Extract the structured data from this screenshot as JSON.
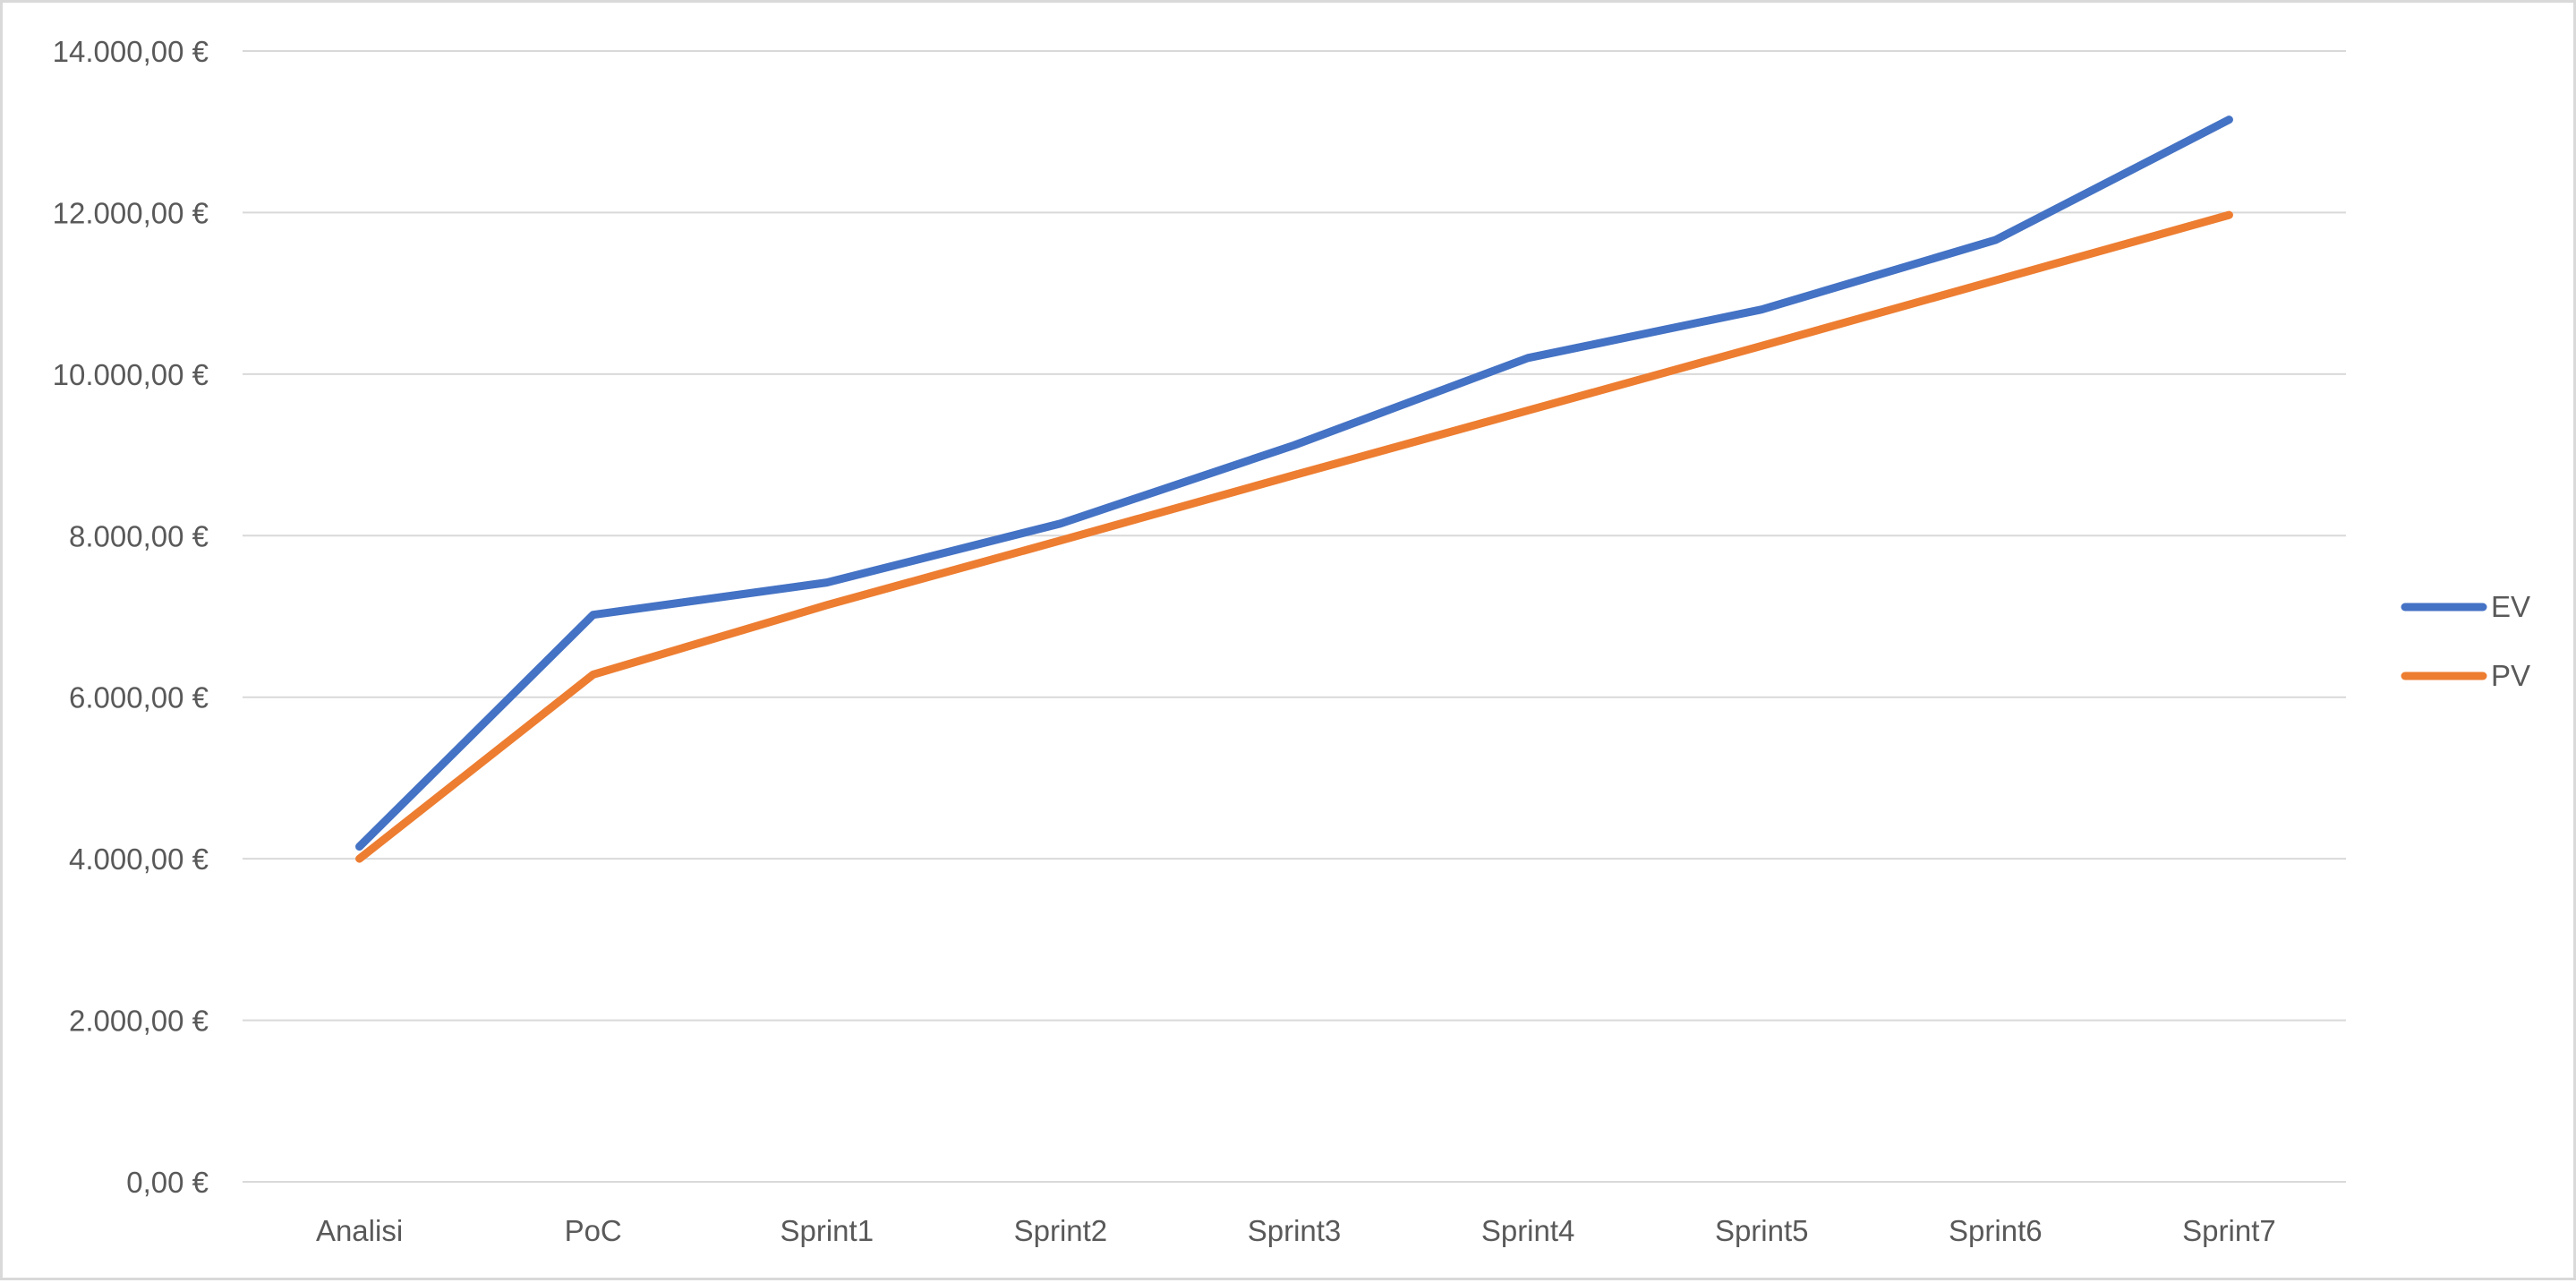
{
  "chart_data": {
    "type": "line",
    "title": "",
    "xlabel": "",
    "ylabel": "",
    "categories": [
      "Analisi",
      "PoC",
      "Sprint1",
      "Sprint2",
      "Sprint3",
      "Sprint4",
      "Sprint5",
      "Sprint6",
      "Sprint7"
    ],
    "series": [
      {
        "name": "EV",
        "color": "#4472C4",
        "values": [
          4150,
          7020,
          7420,
          8150,
          9120,
          10200,
          10800,
          11660,
          13150
        ]
      },
      {
        "name": "PV",
        "color": "#ED7D31",
        "values": [
          4000,
          6280,
          7140,
          7940,
          8750,
          9550,
          10350,
          11160,
          11970
        ]
      }
    ],
    "ylim": [
      0,
      14000
    ],
    "yticks": [
      0,
      2000,
      4000,
      6000,
      8000,
      10000,
      12000,
      14000
    ],
    "ytick_labels": [
      "0,00 €",
      "2.000,00 €",
      "4.000,00 €",
      "6.000,00 €",
      "8.000,00 €",
      "10.000,00 €",
      "12.000,00 €",
      "14.000,00 €"
    ],
    "grid": true,
    "legend_position": "right"
  }
}
